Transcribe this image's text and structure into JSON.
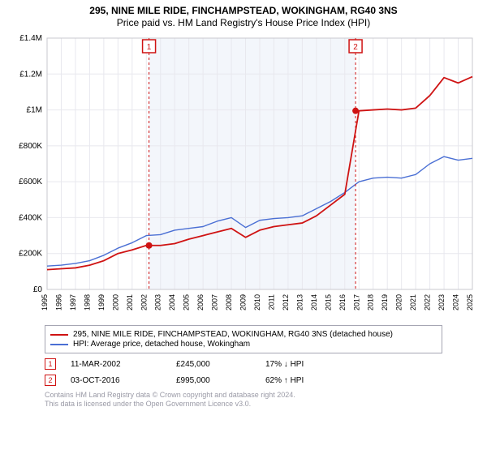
{
  "title_line1": "295, NINE MILE RIDE, FINCHAMPSTEAD, WOKINGHAM, RG40 3NS",
  "title_line2": "Price paid vs. HM Land Registry's House Price Index (HPI)",
  "chart": {
    "type": "line",
    "x_years": [
      1995,
      1996,
      1997,
      1998,
      1999,
      2000,
      2001,
      2002,
      2003,
      2004,
      2005,
      2006,
      2007,
      2008,
      2009,
      2010,
      2011,
      2012,
      2013,
      2014,
      2015,
      2016,
      2017,
      2018,
      2019,
      2020,
      2021,
      2022,
      2023,
      2024,
      2025
    ],
    "xlim": [
      1995,
      2025
    ],
    "ylim": [
      0,
      1400000
    ],
    "ytick_step": 200000,
    "ytick_labels": [
      "£0",
      "£200K",
      "£400K",
      "£600K",
      "£800K",
      "£1M",
      "£1.2M",
      "£1.4M"
    ],
    "grid_color": "#e8e8ee",
    "axis_color": "#c8c8cf",
    "background_color": "#ffffff",
    "series": {
      "property": {
        "label": "295, NINE MILE RIDE, FINCHAMPSTEAD, WOKINGHAM, RG40 3NS (detached house)",
        "color": "#cf1313",
        "width": 1.8,
        "y": [
          110000,
          115000,
          120000,
          135000,
          160000,
          200000,
          220000,
          245000,
          245000,
          255000,
          280000,
          300000,
          320000,
          340000,
          290000,
          330000,
          350000,
          360000,
          370000,
          410000,
          470000,
          530000,
          995000,
          1000000,
          1005000,
          1000000,
          1010000,
          1080000,
          1180000,
          1150000,
          1185000
        ]
      },
      "hpi": {
        "label": "HPI: Average price, detached house, Wokingham",
        "color": "#4a6fd4",
        "width": 1.4,
        "y": [
          130000,
          135000,
          145000,
          160000,
          190000,
          230000,
          260000,
          300000,
          305000,
          330000,
          340000,
          350000,
          380000,
          400000,
          345000,
          385000,
          395000,
          400000,
          410000,
          450000,
          490000,
          540000,
          600000,
          620000,
          625000,
          620000,
          640000,
          700000,
          740000,
          720000,
          730000
        ]
      }
    },
    "sale_markers": [
      {
        "n": "1",
        "year": 2002.19,
        "price": 245000
      },
      {
        "n": "2",
        "year": 2016.76,
        "price": 995000
      }
    ],
    "highlight_band": {
      "from": 2002.19,
      "to": 2016.76,
      "fill": "#f3f6fb"
    }
  },
  "legend": {
    "rows": [
      {
        "color": "#cf1313",
        "label": "295, NINE MILE RIDE, FINCHAMPSTEAD, WOKINGHAM, RG40 3NS (detached house)"
      },
      {
        "color": "#4a6fd4",
        "label": "HPI: Average price, detached house, Wokingham"
      }
    ]
  },
  "marker_table": [
    {
      "n": "1",
      "date": "11-MAR-2002",
      "price": "£245,000",
      "delta": "17% ↓ HPI"
    },
    {
      "n": "2",
      "date": "03-OCT-2016",
      "price": "£995,000",
      "delta": "62% ↑ HPI"
    }
  ],
  "footer_line1": "Contains HM Land Registry data © Crown copyright and database right 2024.",
  "footer_line2": "This data is licensed under the Open Government Licence v3.0."
}
